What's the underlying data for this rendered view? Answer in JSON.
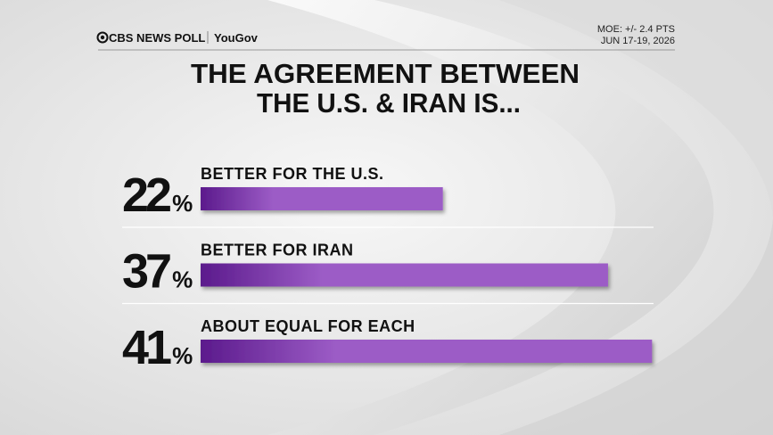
{
  "header": {
    "brand": "CBS NEWS POLL",
    "partner": "YouGov",
    "moe": "MOE: +/- 2.4 PTS",
    "dates": "JUN 17-19, 2026"
  },
  "chart_data": {
    "type": "bar",
    "orientation": "horizontal",
    "title_lines": [
      "THE AGREEMENT BETWEEN",
      "THE U.S. & IRAN IS..."
    ],
    "categories": [
      "BETTER FOR THE U.S.",
      "BETTER FOR IRAN",
      "ABOUT EQUAL FOR EACH"
    ],
    "values": [
      22,
      37,
      41
    ],
    "value_labels": [
      "22%",
      "37%",
      "41%"
    ],
    "color": [
      "#5b1a8c",
      "#9c5cc6"
    ]
  }
}
